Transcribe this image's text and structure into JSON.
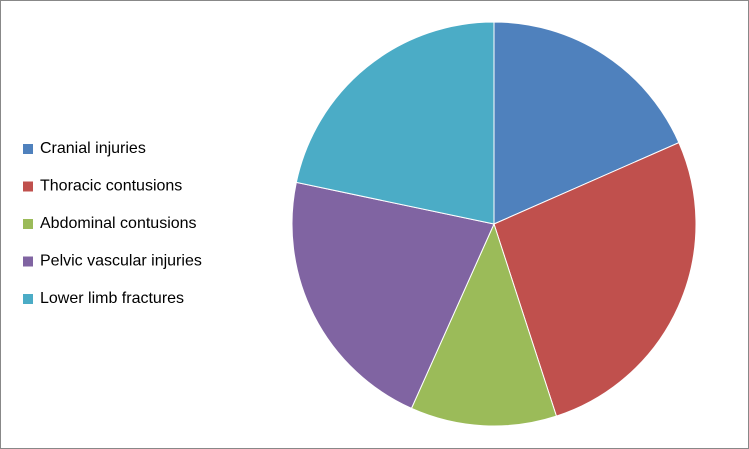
{
  "chart_data": {
    "type": "pie",
    "categories": [
      "Cranial injuries",
      "Thoracic contusions",
      "Abdominal contusions",
      "Pelvic vascular injuries",
      "Lower limb fractures"
    ],
    "values": [
      18.4,
      26.6,
      11.7,
      21.6,
      21.7
    ],
    "colors": [
      "#4f81bd",
      "#c0504d",
      "#9bbb59",
      "#8064a2",
      "#4bacc6"
    ],
    "legend": "left"
  }
}
